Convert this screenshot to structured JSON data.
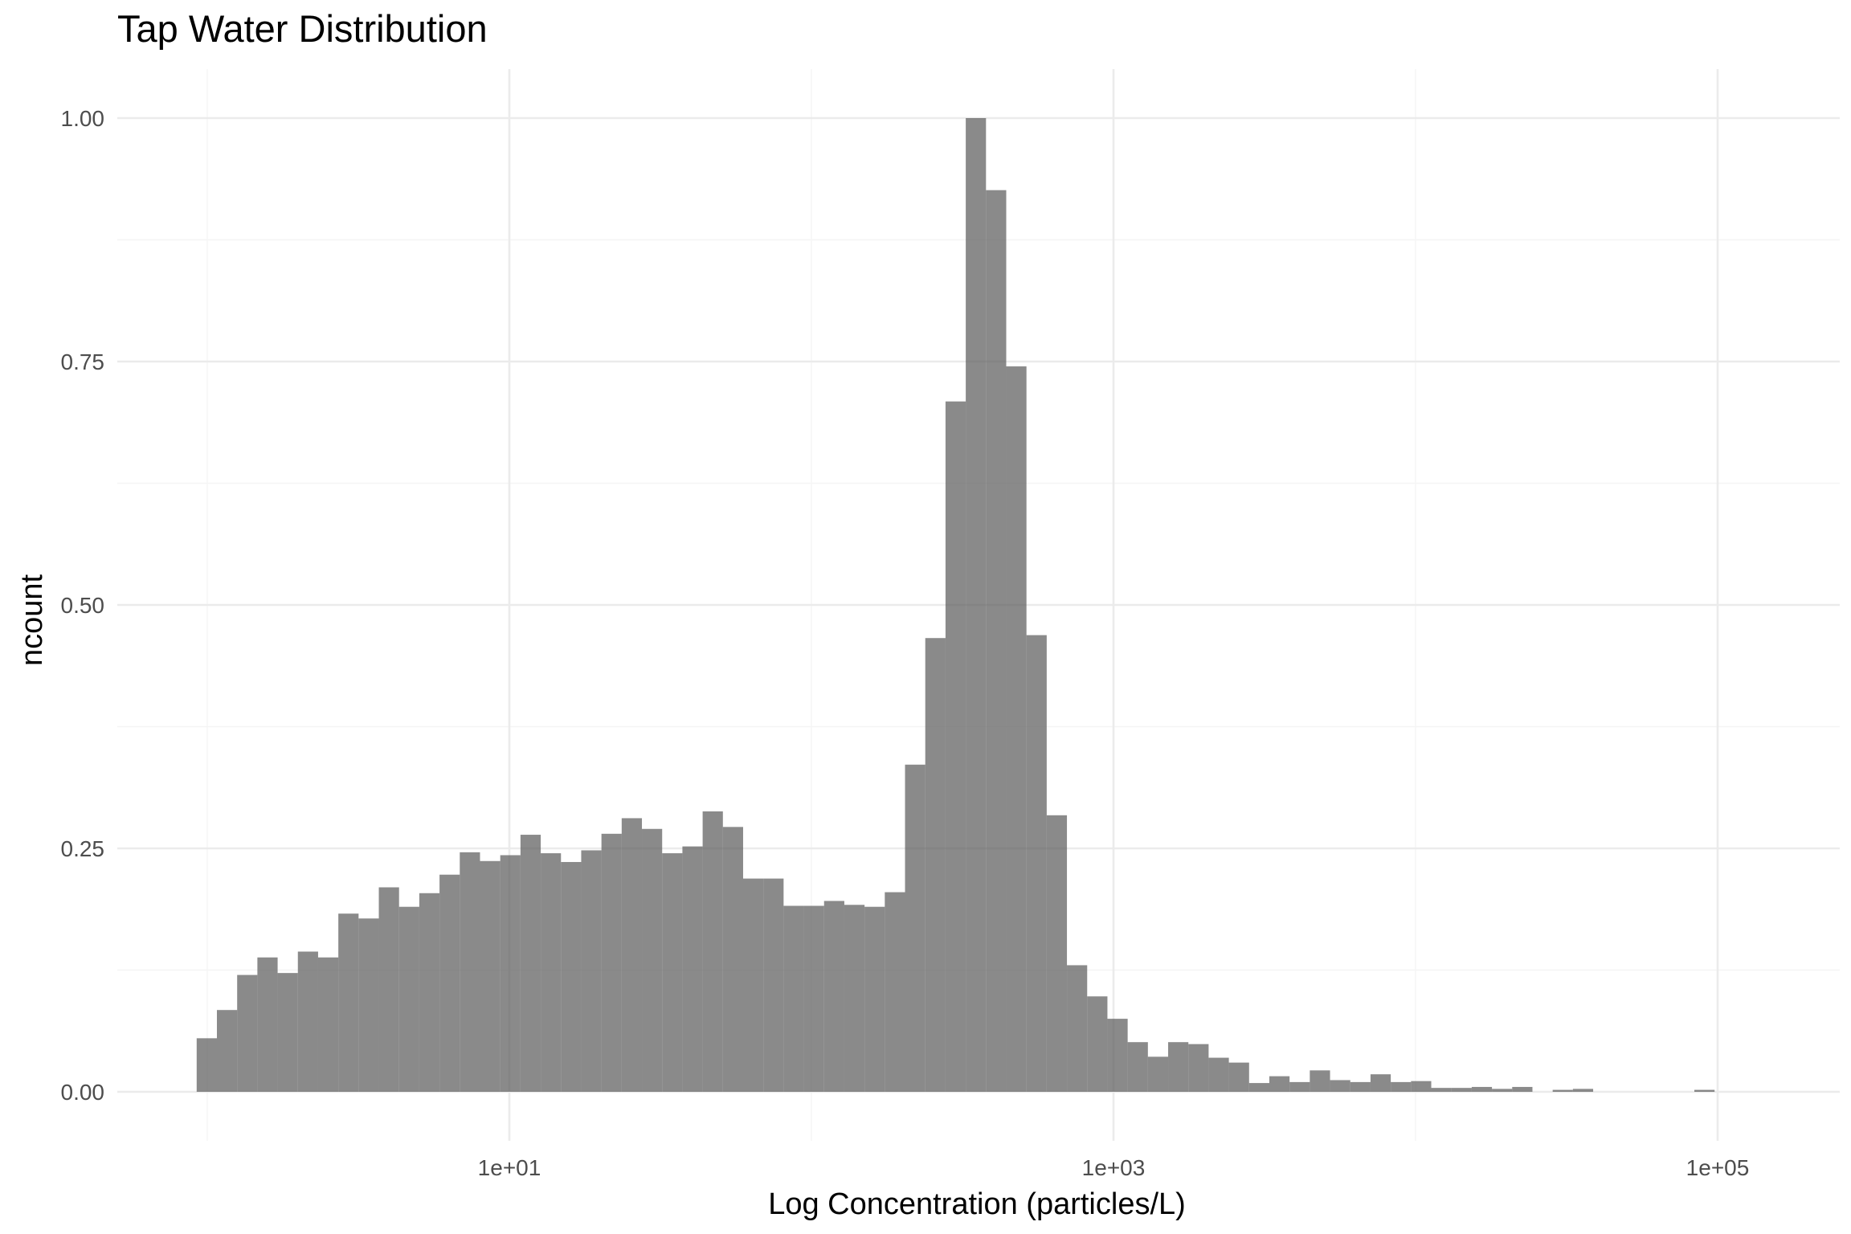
{
  "chart_data": {
    "type": "bar",
    "title": "Tap Water Distribution",
    "xlabel": "Log Concentration (particles/L)",
    "ylabel": "ncount",
    "x_scale": "log10",
    "x_ticks": [
      {
        "value": 10,
        "label": "1e+01"
      },
      {
        "value": 1000,
        "label": "1e+03"
      },
      {
        "value": 100000,
        "label": "1e+05"
      }
    ],
    "y_ticks": [
      {
        "value": 0,
        "label": "0.00"
      },
      {
        "value": 0.25,
        "label": "0.25"
      },
      {
        "value": 0.5,
        "label": "0.50"
      },
      {
        "value": 0.75,
        "label": "0.75"
      },
      {
        "value": 1.0,
        "label": "1.00"
      }
    ],
    "xlim": [
      0.6,
      200000
    ],
    "ylim": [
      -0.05,
      1.05
    ],
    "bar_color": "#595959",
    "bar_opacity": 0.7,
    "grid": true,
    "bins_log10_start": [
      -0.0351,
      0.0319,
      0.0989,
      0.1659,
      0.2329,
      0.2999,
      0.3669,
      0.4339,
      0.5009,
      0.5679,
      0.6349,
      0.7019,
      0.7689,
      0.8359,
      0.9029,
      0.9699,
      1.0369,
      1.1039,
      1.1709,
      1.2379,
      1.3049,
      1.3719,
      1.4389,
      1.5059,
      1.5729,
      1.6399,
      1.7069,
      1.7739,
      1.8409,
      1.9079,
      1.9749,
      2.0419,
      2.1089,
      2.1759,
      2.2429,
      2.3099,
      2.3769,
      2.4439,
      2.5109,
      2.5779,
      2.6449,
      2.7119,
      2.7789,
      2.8459,
      2.9129,
      2.9799,
      3.0469,
      3.1139,
      3.1809,
      3.2479,
      3.3149,
      3.3819,
      3.4489,
      3.5159,
      3.5829,
      3.6499,
      3.7169,
      3.7839,
      3.8509,
      3.9179,
      3.9849,
      4.0519,
      4.1189,
      4.1859,
      4.2529,
      4.3199,
      4.3869,
      4.4539,
      4.5209,
      4.5879,
      4.6549,
      4.7219,
      4.7889,
      4.8559,
      4.9229,
      4.9899,
      5.0569
    ],
    "bin_width_log10": 0.067,
    "values": [
      0.055,
      0.084,
      0.12,
      0.138,
      0.122,
      0.144,
      0.138,
      0.183,
      0.178,
      0.21,
      0.19,
      0.204,
      0.223,
      0.246,
      0.237,
      0.243,
      0.264,
      0.245,
      0.236,
      0.248,
      0.265,
      0.281,
      0.27,
      0.245,
      0.252,
      0.288,
      0.272,
      0.219,
      0.219,
      0.191,
      0.191,
      0.196,
      0.192,
      0.19,
      0.205,
      0.336,
      0.466,
      0.709,
      1.0,
      0.926,
      0.745,
      0.469,
      0.284,
      0.13,
      0.098,
      0.075,
      0.051,
      0.036,
      0.051,
      0.049,
      0.035,
      0.03,
      0.009,
      0.016,
      0.01,
      0.022,
      0.012,
      0.01,
      0.018,
      0.01,
      0.011,
      0.004,
      0.004,
      0.005,
      0.003,
      0.005,
      0.0,
      0.002,
      0.003,
      0.0,
      0.0,
      0.0,
      0.0,
      0.0,
      0.002,
      0.0,
      0.0
    ]
  }
}
